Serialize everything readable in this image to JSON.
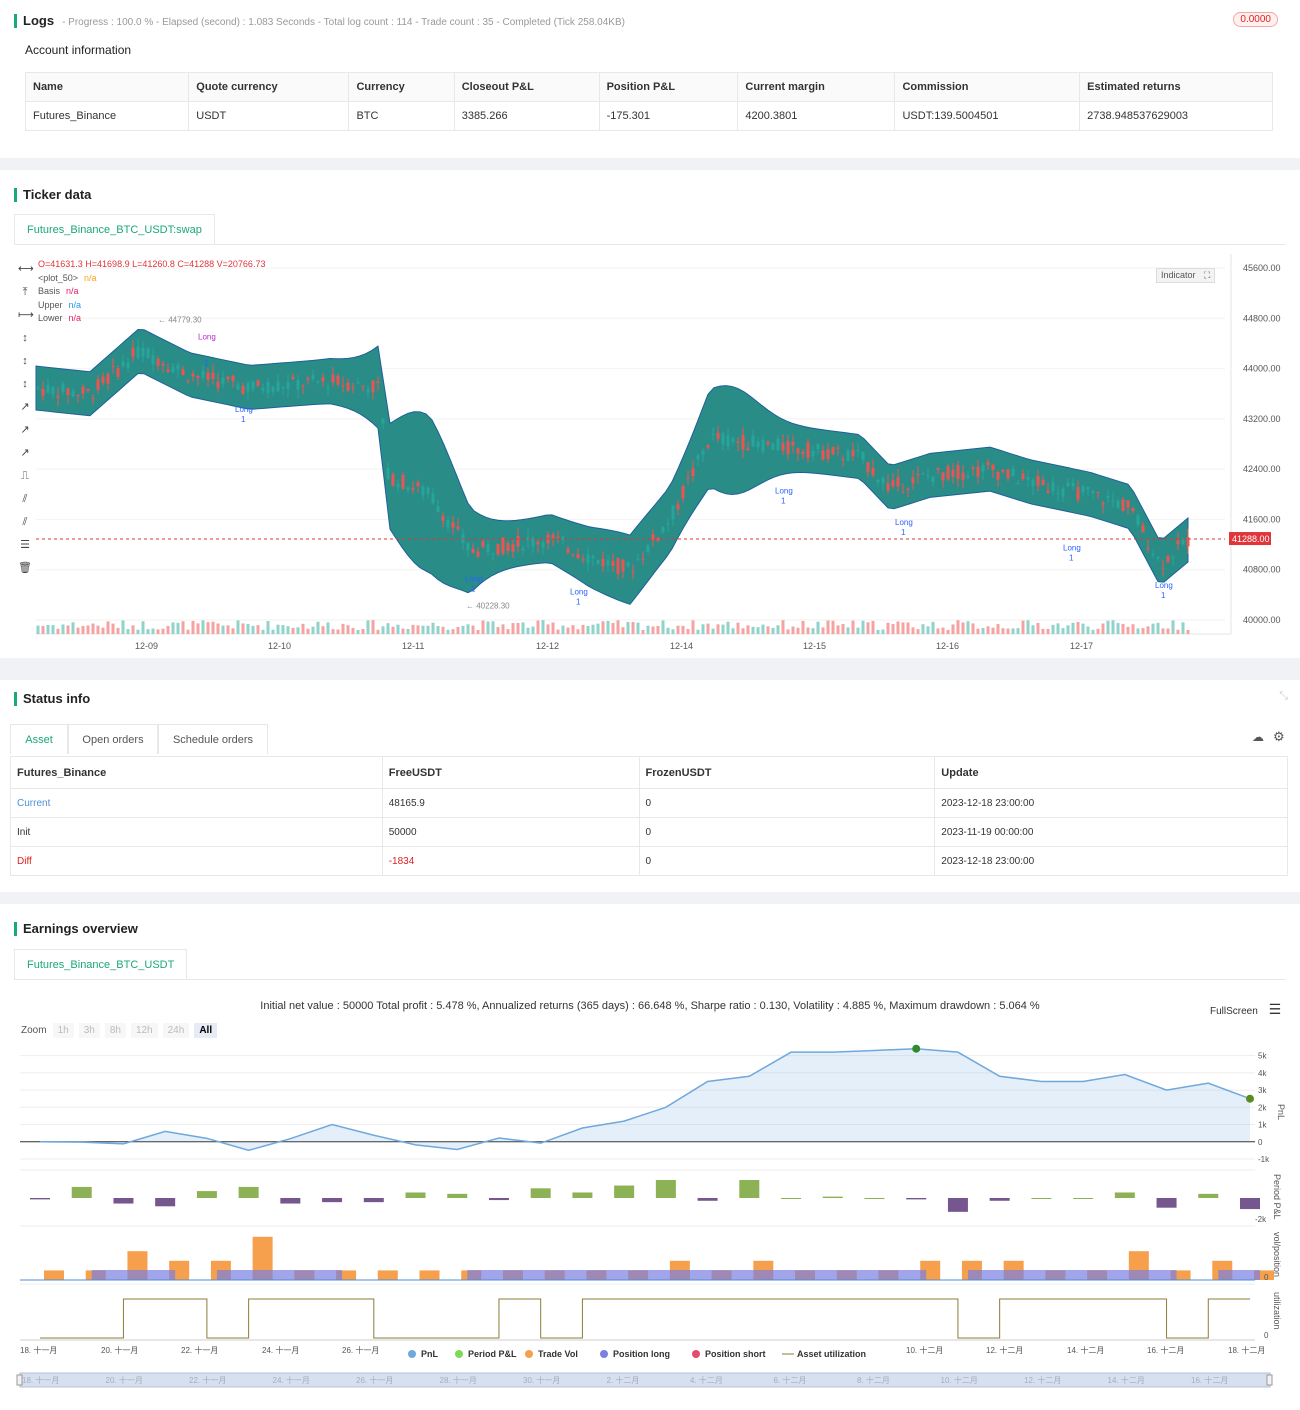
{
  "logs": {
    "title": "Logs",
    "summary": "- Progress : 100.0 % - Elapsed (second) : 1.083 Seconds - Total log count : 114 - Trade count : 35 - Completed (Tick 258.04KB)",
    "badge": "0.0000"
  },
  "account": {
    "title": "Account information",
    "headers": [
      "Name",
      "Quote currency",
      "Currency",
      "Closeout P&L",
      "Position P&L",
      "Current margin",
      "Commission",
      "Estimated returns"
    ],
    "row": [
      "Futures_Binance",
      "USDT",
      "BTC",
      "3385.266",
      "-175.301",
      "4200.3801",
      "USDT:139.5004501",
      "2738.948537629003"
    ]
  },
  "ticker": {
    "title": "Ticker data",
    "tab": "Futures_Binance_BTC_USDT:swap",
    "ohlc": "O=41631.3 H=41698.9 L=41260.8 C=41288 V=20766.73",
    "legend": [
      {
        "name": "<plot_50>",
        "value": "n/a",
        "color": "#f5a623"
      },
      {
        "name": "Basis",
        "value": "n/a",
        "color": "#e91e63"
      },
      {
        "name": "Upper",
        "value": "n/a",
        "color": "#2196f3"
      },
      {
        "name": "Lower",
        "value": "n/a",
        "color": "#e91e63"
      }
    ],
    "indicator_btn": "Indicator",
    "price_ticks": [
      "45600.00",
      "44800.00",
      "44000.00",
      "43200.00",
      "42400.00",
      "41600.00",
      "40800.00",
      "40000.00"
    ],
    "last_price": "41288.00",
    "date_ticks": [
      "12-09",
      "12-10",
      "12-11",
      "12-12",
      "12-14",
      "12-15",
      "12-16",
      "12-17"
    ],
    "high_label": "44779.30",
    "low_label": "40228.30",
    "signal_long": "Long",
    "signal_qty": "1"
  },
  "status": {
    "title": "Status info",
    "tabs": [
      "Asset",
      "Open orders",
      "Schedule orders"
    ],
    "headers": [
      "Futures_Binance",
      "FreeUSDT",
      "FrozenUSDT",
      "Update"
    ],
    "rows": [
      {
        "label": "Current",
        "free": "48165.9",
        "frozen": "0",
        "update": "2023-12-18 23:00:00",
        "color": "#4a90d9"
      },
      {
        "label": "Init",
        "free": "50000",
        "frozen": "0",
        "update": "2023-11-19 00:00:00",
        "color": "#333333"
      },
      {
        "label": "Diff",
        "free": "-1834",
        "frozen": "0",
        "update": "2023-12-18 23:00:00",
        "color": "#e02020"
      }
    ]
  },
  "earnings": {
    "title": "Earnings overview",
    "tab": "Futures_Binance_BTC_USDT",
    "summary": "Initial net value : 50000 Total profit : 5.478 %, Annualized returns (365 days) : 66.648 %, Sharpe ratio : 0.130, Volatility : 4.885 %, Maximum drawdown : 5.064 %",
    "fullscreen": "FullScreen",
    "zoom_label": "Zoom",
    "zoom_options": [
      "1h",
      "3h",
      "8h",
      "12h",
      "24h",
      "All"
    ],
    "pnl_ticks": [
      "5k",
      "4k",
      "3k",
      "2k",
      "1k",
      "0",
      "-1k"
    ],
    "axis_titles": [
      "PnL",
      "Period P&L",
      "vol/position",
      "utilization"
    ],
    "period_tick": "-2k",
    "vol_tick": "0",
    "util_tick": "0",
    "date_ticks": [
      "18. 十一月",
      "20. 十一月",
      "22. 十一月",
      "24. 十一月",
      "26. 十一月",
      "10. 十二月",
      "12. 十二月",
      "14. 十二月",
      "16. 十二月",
      "18. 十二月"
    ],
    "nav_ticks": [
      "18. 十一月",
      "20. 十一月",
      "22. 十一月",
      "24. 十一月",
      "26. 十一月",
      "28. 十一月",
      "30. 十一月",
      "2. 十二月",
      "4. 十二月",
      "6. 十二月",
      "8. 十二月",
      "10. 十二月",
      "12. 十二月",
      "14. 十二月",
      "16. 十二月"
    ],
    "legend": [
      {
        "name": "PnL",
        "color": "#6fa8dc"
      },
      {
        "name": "Period P&L",
        "color": "#7ed957"
      },
      {
        "name": "Trade Vol",
        "color": "#f6a04d"
      },
      {
        "name": "Position long",
        "color": "#7b7fe0"
      },
      {
        "name": "Position short",
        "color": "#e84a6a"
      },
      {
        "name": "Asset utilization",
        "color": "#8b7d3a"
      }
    ]
  },
  "chart_data": {
    "type": "line",
    "series": [
      {
        "name": "PnL",
        "values": [
          0,
          -20,
          -120,
          600,
          200,
          -500,
          180,
          1000,
          380,
          -180,
          -450,
          220,
          -80,
          800,
          1200,
          2000,
          3500,
          3800,
          5200,
          5200,
          5300,
          5400,
          5200,
          3800,
          3500,
          3500,
          3900,
          3000,
          3400,
          2500
        ]
      },
      {
        "name": "Period P&L",
        "values": [
          -100,
          800,
          -400,
          -600,
          500,
          800,
          -400,
          -300,
          -300,
          400,
          300,
          -150,
          700,
          400,
          900,
          1300,
          -200,
          1300,
          0,
          100,
          0,
          -100,
          -1000,
          -200,
          0,
          0,
          400,
          -700,
          300,
          -800
        ]
      }
    ]
  }
}
